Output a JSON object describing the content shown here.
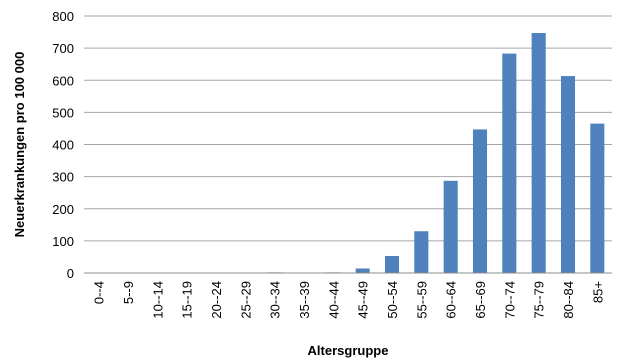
{
  "chart_data": {
    "type": "bar",
    "xlabel": "Altersgruppe",
    "ylabel": "Neuerkrankungen pro 100 000",
    "ylim": [
      0,
      800
    ],
    "yticks": [
      0,
      100,
      200,
      300,
      400,
      500,
      600,
      700,
      800
    ],
    "grid": "horizontal",
    "legend": "none",
    "bar_color": "#4f81bd",
    "grid_color": "#a6a6a6",
    "categories": [
      "0--4",
      "5--9",
      "10--14",
      "15--19",
      "20--24",
      "25--29",
      "30--34",
      "35--39",
      "40--44",
      "45--49",
      "50--54",
      "55--59",
      "60--64",
      "65--69",
      "70--74",
      "75--79",
      "80--84",
      "85+"
    ],
    "values": [
      0,
      0,
      0,
      0,
      0,
      0,
      2,
      0,
      2,
      14,
      53,
      130,
      287,
      447,
      683,
      747,
      613,
      465
    ]
  }
}
